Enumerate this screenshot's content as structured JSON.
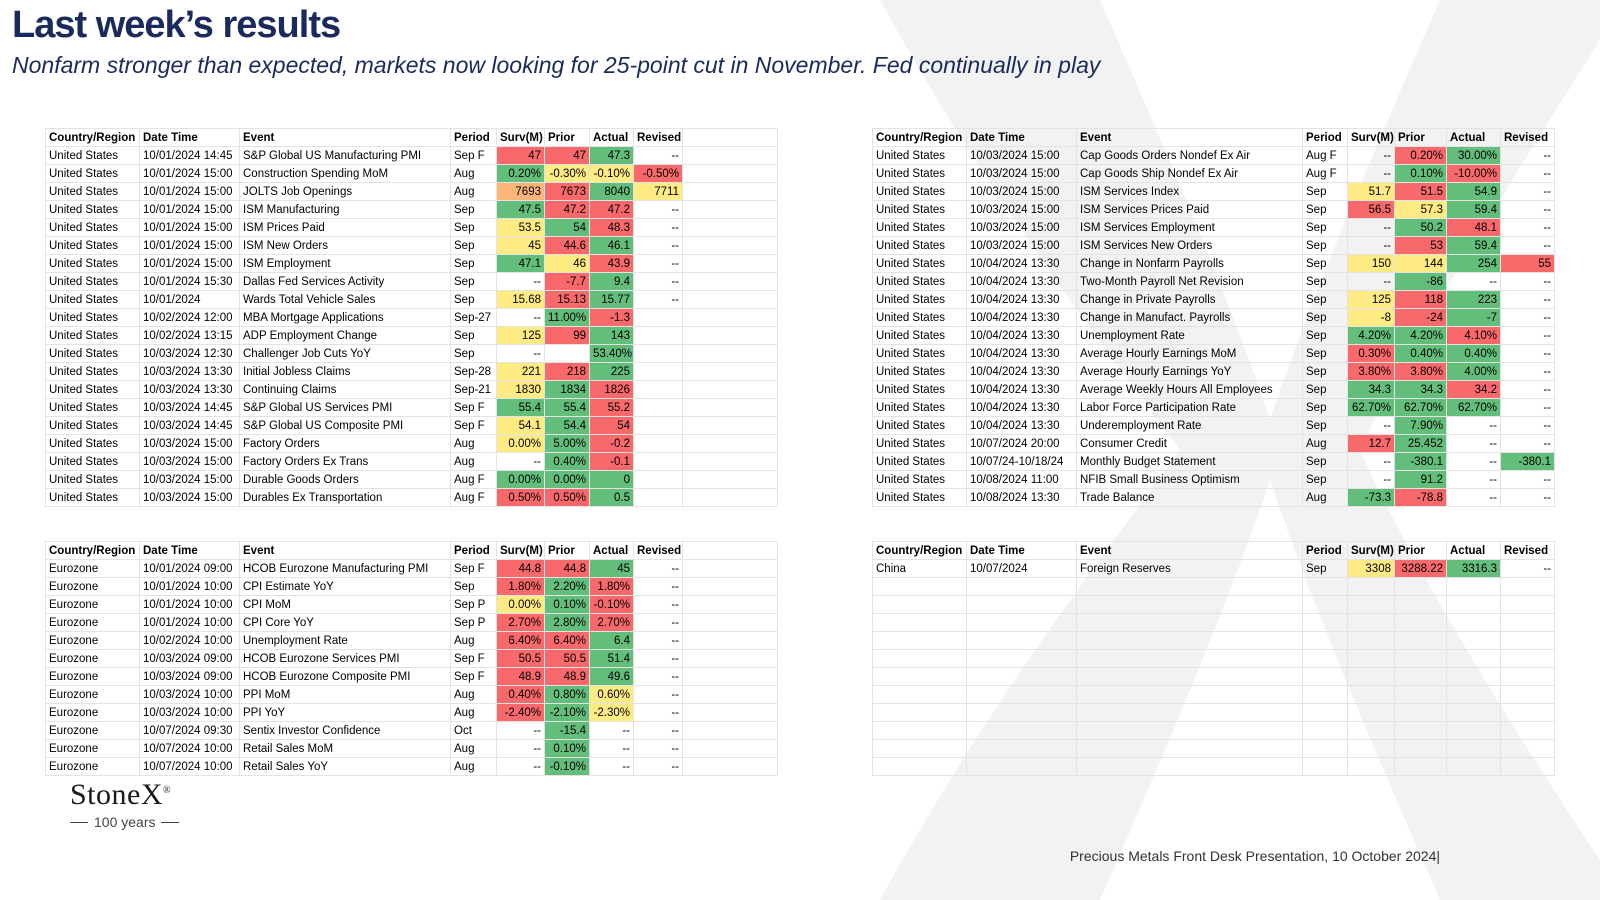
{
  "title": "Last week’s results",
  "subtitle": "Nonfarm stronger than expected, markets now looking for 25-point cut in November.  Fed continually in play",
  "headers": [
    "Country/Region",
    "Date Time",
    "Event",
    "Period",
    "Surv(M)",
    "Prior",
    "Actual",
    "Revised"
  ],
  "tables": {
    "us_left": [
      {
        "country": "United States",
        "datetime": "10/01/2024 14:45",
        "event": "S&P Global US Manufacturing PMI",
        "period": "Sep F",
        "surv": "47",
        "prior": "47",
        "actual": "47.3",
        "revised": "--",
        "c": [
          "r",
          "r",
          "g",
          ""
        ]
      },
      {
        "country": "United States",
        "datetime": "10/01/2024 15:00",
        "event": "Construction Spending MoM",
        "period": "Aug",
        "surv": "0.20%",
        "prior": "-0.30%",
        "actual": "-0.10%",
        "revised": "-0.50%",
        "c": [
          "g",
          "y",
          "y",
          "r"
        ]
      },
      {
        "country": "United States",
        "datetime": "10/01/2024 15:00",
        "event": "JOLTS Job Openings",
        "period": "Aug",
        "surv": "7693",
        "prior": "7673",
        "actual": "8040",
        "revised": "7711",
        "c": [
          "o",
          "r",
          "g",
          "y"
        ]
      },
      {
        "country": "United States",
        "datetime": "10/01/2024 15:00",
        "event": "ISM Manufacturing",
        "period": "Sep",
        "surv": "47.5",
        "prior": "47.2",
        "actual": "47.2",
        "revised": "--",
        "c": [
          "g",
          "r",
          "r",
          ""
        ]
      },
      {
        "country": "United States",
        "datetime": "10/01/2024 15:00",
        "event": "ISM Prices Paid",
        "period": "Sep",
        "surv": "53.5",
        "prior": "54",
        "actual": "48.3",
        "revised": "--",
        "c": [
          "y",
          "g",
          "r",
          ""
        ]
      },
      {
        "country": "United States",
        "datetime": "10/01/2024 15:00",
        "event": "ISM New Orders",
        "period": "Sep",
        "surv": "45",
        "prior": "44.6",
        "actual": "46.1",
        "revised": "--",
        "c": [
          "y",
          "r",
          "g",
          ""
        ]
      },
      {
        "country": "United States",
        "datetime": "10/01/2024 15:00",
        "event": "ISM Employment",
        "period": "Sep",
        "surv": "47.1",
        "prior": "46",
        "actual": "43.9",
        "revised": "--",
        "c": [
          "g",
          "y",
          "r",
          ""
        ]
      },
      {
        "country": "United States",
        "datetime": "10/01/2024 15:30",
        "event": "Dallas Fed Services Activity",
        "period": "Sep",
        "surv": "--",
        "prior": "-7.7",
        "actual": "9.4",
        "revised": "--",
        "c": [
          "",
          "r",
          "g",
          ""
        ]
      },
      {
        "country": "United States",
        "datetime": "10/01/2024",
        "event": "Wards Total Vehicle Sales",
        "period": "Sep",
        "surv": "15.68",
        "prior": "15.13",
        "actual": "15.77",
        "revised": "--",
        "c": [
          "y",
          "r",
          "g",
          ""
        ]
      },
      {
        "country": "United States",
        "datetime": "10/02/2024 12:00",
        "event": "MBA Mortgage Applications",
        "period": "Sep-27",
        "surv": "--",
        "prior": "11.00%",
        "actual": "-1.3",
        "revised": "",
        "c": [
          "",
          "g",
          "r",
          ""
        ]
      },
      {
        "country": "United States",
        "datetime": "10/02/2024 13:15",
        "event": "ADP Employment Change",
        "period": "Sep",
        "surv": "125",
        "prior": "99",
        "actual": "143",
        "revised": "",
        "c": [
          "y",
          "r",
          "g",
          ""
        ]
      },
      {
        "country": "United States",
        "datetime": "10/03/2024 12:30",
        "event": "Challenger Job Cuts YoY",
        "period": "Sep",
        "surv": "--",
        "prior": "",
        "actual": "53.40%",
        "revised": "",
        "c": [
          "",
          "",
          "g",
          ""
        ]
      },
      {
        "country": "United States",
        "datetime": "10/03/2024 13:30",
        "event": "Initial Jobless Claims",
        "period": "Sep-28",
        "surv": "221",
        "prior": "218",
        "actual": "225",
        "revised": "",
        "c": [
          "y",
          "r",
          "g",
          ""
        ]
      },
      {
        "country": "United States",
        "datetime": "10/03/2024 13:30",
        "event": "Continuing Claims",
        "period": "Sep-21",
        "surv": "1830",
        "prior": "1834",
        "actual": "1826",
        "revised": "",
        "c": [
          "y",
          "g",
          "r",
          ""
        ]
      },
      {
        "country": "United States",
        "datetime": "10/03/2024 14:45",
        "event": "S&P Global US Services PMI",
        "period": "Sep F",
        "surv": "55.4",
        "prior": "55.4",
        "actual": "55.2",
        "revised": "",
        "c": [
          "g",
          "g",
          "r",
          ""
        ]
      },
      {
        "country": "United States",
        "datetime": "10/03/2024 14:45",
        "event": "S&P Global US Composite PMI",
        "period": "Sep F",
        "surv": "54.1",
        "prior": "54.4",
        "actual": "54",
        "revised": "",
        "c": [
          "y",
          "g",
          "r",
          ""
        ]
      },
      {
        "country": "United States",
        "datetime": "10/03/2024 15:00",
        "event": "Factory Orders",
        "period": "Aug",
        "surv": "0.00%",
        "prior": "5.00%",
        "actual": "-0.2",
        "revised": "",
        "c": [
          "y",
          "g",
          "r",
          ""
        ]
      },
      {
        "country": "United States",
        "datetime": "10/03/2024 15:00",
        "event": "Factory Orders Ex Trans",
        "period": "Aug",
        "surv": "--",
        "prior": "0.40%",
        "actual": "-0.1",
        "revised": "",
        "c": [
          "",
          "g",
          "r",
          ""
        ]
      },
      {
        "country": "United States",
        "datetime": "10/03/2024 15:00",
        "event": "Durable Goods Orders",
        "period": "Aug F",
        "surv": "0.00%",
        "prior": "0.00%",
        "actual": "0",
        "revised": "",
        "c": [
          "g",
          "g",
          "g",
          ""
        ]
      },
      {
        "country": "United States",
        "datetime": "10/03/2024 15:00",
        "event": "Durables Ex Transportation",
        "period": "Aug F",
        "surv": "0.50%",
        "prior": "0.50%",
        "actual": "0.5",
        "revised": "",
        "c": [
          "r",
          "r",
          "g",
          ""
        ]
      }
    ],
    "us_right": [
      {
        "country": "United States",
        "datetime": "10/03/2024 15:00",
        "event": "Cap Goods Orders Nondef Ex Air",
        "period": "Aug F",
        "surv": "--",
        "prior": "0.20%",
        "actual": "30.00%",
        "revised": "--",
        "c": [
          "",
          "r",
          "g",
          ""
        ]
      },
      {
        "country": "United States",
        "datetime": "10/03/2024 15:00",
        "event": "Cap Goods Ship Nondef Ex Air",
        "period": "Aug F",
        "surv": "--",
        "prior": "0.10%",
        "actual": "-10.00%",
        "revised": "--",
        "c": [
          "",
          "g",
          "r",
          ""
        ]
      },
      {
        "country": "United States",
        "datetime": "10/03/2024 15:00",
        "event": "ISM Services Index",
        "period": "Sep",
        "surv": "51.7",
        "prior": "51.5",
        "actual": "54.9",
        "revised": "--",
        "c": [
          "y",
          "r",
          "g",
          ""
        ]
      },
      {
        "country": "United States",
        "datetime": "10/03/2024 15:00",
        "event": "ISM Services Prices Paid",
        "period": "Sep",
        "surv": "56.5",
        "prior": "57.3",
        "actual": "59.4",
        "revised": "--",
        "c": [
          "r",
          "y",
          "g",
          ""
        ]
      },
      {
        "country": "United States",
        "datetime": "10/03/2024 15:00",
        "event": "ISM Services Employment",
        "period": "Sep",
        "surv": "--",
        "prior": "50.2",
        "actual": "48.1",
        "revised": "--",
        "c": [
          "",
          "g",
          "r",
          ""
        ]
      },
      {
        "country": "United States",
        "datetime": "10/03/2024 15:00",
        "event": "ISM Services New Orders",
        "period": "Sep",
        "surv": "--",
        "prior": "53",
        "actual": "59.4",
        "revised": "--",
        "c": [
          "",
          "r",
          "g",
          ""
        ]
      },
      {
        "country": "United States",
        "datetime": "10/04/2024 13:30",
        "event": "Change in Nonfarm Payrolls",
        "period": "Sep",
        "surv": "150",
        "prior": "144",
        "actual": "254",
        "revised": "55",
        "c": [
          "y",
          "y",
          "g",
          "r"
        ]
      },
      {
        "country": "United States",
        "datetime": "10/04/2024 13:30",
        "event": "Two-Month Payroll Net Revision",
        "period": "Sep",
        "surv": "--",
        "prior": "-86",
        "actual": "--",
        "revised": "--",
        "c": [
          "",
          "g",
          "",
          ""
        ]
      },
      {
        "country": "United States",
        "datetime": "10/04/2024 13:30",
        "event": "Change in Private Payrolls",
        "period": "Sep",
        "surv": "125",
        "prior": "118",
        "actual": "223",
        "revised": "--",
        "c": [
          "y",
          "r",
          "g",
          ""
        ]
      },
      {
        "country": "United States",
        "datetime": "10/04/2024 13:30",
        "event": "Change in Manufact. Payrolls",
        "period": "Sep",
        "surv": "-8",
        "prior": "-24",
        "actual": "-7",
        "revised": "--",
        "c": [
          "y",
          "r",
          "g",
          ""
        ]
      },
      {
        "country": "United States",
        "datetime": "10/04/2024 13:30",
        "event": "Unemployment Rate",
        "period": "Sep",
        "surv": "4.20%",
        "prior": "4.20%",
        "actual": "4.10%",
        "revised": "--",
        "c": [
          "g",
          "g",
          "r",
          ""
        ]
      },
      {
        "country": "United States",
        "datetime": "10/04/2024 13:30",
        "event": "Average Hourly Earnings MoM",
        "period": "Sep",
        "surv": "0.30%",
        "prior": "0.40%",
        "actual": "0.40%",
        "revised": "--",
        "c": [
          "r",
          "g",
          "g",
          ""
        ]
      },
      {
        "country": "United States",
        "datetime": "10/04/2024 13:30",
        "event": "Average Hourly Earnings YoY",
        "period": "Sep",
        "surv": "3.80%",
        "prior": "3.80%",
        "actual": "4.00%",
        "revised": "--",
        "c": [
          "r",
          "r",
          "g",
          ""
        ]
      },
      {
        "country": "United States",
        "datetime": "10/04/2024 13:30",
        "event": "Average Weekly Hours All Employees",
        "period": "Sep",
        "surv": "34.3",
        "prior": "34.3",
        "actual": "34.2",
        "revised": "--",
        "c": [
          "g",
          "g",
          "r",
          ""
        ]
      },
      {
        "country": "United States",
        "datetime": "10/04/2024 13:30",
        "event": "Labor Force Participation Rate",
        "period": "Sep",
        "surv": "62.70%",
        "prior": "62.70%",
        "actual": "62.70%",
        "revised": "--",
        "c": [
          "g",
          "g",
          "g",
          ""
        ]
      },
      {
        "country": "United States",
        "datetime": "10/04/2024 13:30",
        "event": "Underemployment Rate",
        "period": "Sep",
        "surv": "--",
        "prior": "7.90%",
        "actual": "--",
        "revised": "--",
        "c": [
          "",
          "g",
          "",
          ""
        ]
      },
      {
        "country": "United States",
        "datetime": "10/07/2024 20:00",
        "event": "Consumer Credit",
        "period": "Aug",
        "surv": "12.7",
        "prior": "25.452",
        "actual": "--",
        "revised": "--",
        "c": [
          "r",
          "g",
          "",
          ""
        ]
      },
      {
        "country": "United States",
        "datetime": "10/07/24-10/18/24",
        "event": "Monthly Budget Statement",
        "period": "Sep",
        "surv": "--",
        "prior": "-380.1",
        "actual": "--",
        "revised": "-380.1",
        "c": [
          "",
          "g",
          "",
          "g"
        ]
      },
      {
        "country": "United States",
        "datetime": "10/08/2024 11:00",
        "event": "NFIB Small Business Optimism",
        "period": "Sep",
        "surv": "--",
        "prior": "91.2",
        "actual": "--",
        "revised": "--",
        "c": [
          "",
          "g",
          "",
          ""
        ]
      },
      {
        "country": "United States",
        "datetime": "10/08/2024 13:30",
        "event": "Trade Balance",
        "period": "Aug",
        "surv": "-73.3",
        "prior": "-78.8",
        "actual": "--",
        "revised": "--",
        "c": [
          "g",
          "r",
          "",
          ""
        ]
      }
    ],
    "eurozone": [
      {
        "country": "Eurozone",
        "datetime": "10/01/2024 09:00",
        "event": "HCOB Eurozone Manufacturing PMI",
        "period": "Sep F",
        "surv": "44.8",
        "prior": "44.8",
        "actual": "45",
        "revised": "--",
        "c": [
          "r",
          "r",
          "g",
          ""
        ]
      },
      {
        "country": "Eurozone",
        "datetime": "10/01/2024 10:00",
        "event": "CPI Estimate YoY",
        "period": "Sep",
        "surv": "1.80%",
        "prior": "2.20%",
        "actual": "1.80%",
        "revised": "--",
        "c": [
          "r",
          "g",
          "r",
          ""
        ]
      },
      {
        "country": "Eurozone",
        "datetime": "10/01/2024 10:00",
        "event": "CPI MoM",
        "period": "Sep P",
        "surv": "0.00%",
        "prior": "0.10%",
        "actual": "-0.10%",
        "revised": "--",
        "c": [
          "y",
          "g",
          "r",
          ""
        ]
      },
      {
        "country": "Eurozone",
        "datetime": "10/01/2024 10:00",
        "event": "CPI Core YoY",
        "period": "Sep P",
        "surv": "2.70%",
        "prior": "2.80%",
        "actual": "2.70%",
        "revised": "--",
        "c": [
          "r",
          "g",
          "r",
          ""
        ]
      },
      {
        "country": "Eurozone",
        "datetime": "10/02/2024 10:00",
        "event": "Unemployment Rate",
        "period": "Aug",
        "surv": "6.40%",
        "prior": "6.40%",
        "actual": "6.4",
        "revised": "--",
        "c": [
          "r",
          "r",
          "g",
          ""
        ]
      },
      {
        "country": "Eurozone",
        "datetime": "10/03/2024 09:00",
        "event": "HCOB Eurozone Services PMI",
        "period": "Sep F",
        "surv": "50.5",
        "prior": "50.5",
        "actual": "51.4",
        "revised": "--",
        "c": [
          "r",
          "r",
          "g",
          ""
        ]
      },
      {
        "country": "Eurozone",
        "datetime": "10/03/2024 09:00",
        "event": "HCOB Eurozone Composite PMI",
        "period": "Sep F",
        "surv": "48.9",
        "prior": "48.9",
        "actual": "49.6",
        "revised": "--",
        "c": [
          "r",
          "r",
          "g",
          ""
        ]
      },
      {
        "country": "Eurozone",
        "datetime": "10/03/2024 10:00",
        "event": "PPI MoM",
        "period": "Aug",
        "surv": "0.40%",
        "prior": "0.80%",
        "actual": "0.60%",
        "revised": "--",
        "c": [
          "r",
          "g",
          "y",
          ""
        ]
      },
      {
        "country": "Eurozone",
        "datetime": "10/03/2024 10:00",
        "event": "PPI YoY",
        "period": "Aug",
        "surv": "-2.40%",
        "prior": "-2.10%",
        "actual": "-2.30%",
        "revised": "--",
        "c": [
          "r",
          "g",
          "y",
          ""
        ]
      },
      {
        "country": "Eurozone",
        "datetime": "10/07/2024 09:30",
        "event": "Sentix Investor Confidence",
        "period": "Oct",
        "surv": "--",
        "prior": "-15.4",
        "actual": "--",
        "revised": "--",
        "c": [
          "",
          "g",
          "",
          ""
        ]
      },
      {
        "country": "Eurozone",
        "datetime": "10/07/2024 10:00",
        "event": "Retail Sales MoM",
        "period": "Aug",
        "surv": "--",
        "prior": "0.10%",
        "actual": "--",
        "revised": "--",
        "c": [
          "",
          "g",
          "",
          ""
        ]
      },
      {
        "country": "Eurozone",
        "datetime": "10/07/2024 10:00",
        "event": "Retail Sales YoY",
        "period": "Aug",
        "surv": "--",
        "prior": "-0.10%",
        "actual": "--",
        "revised": "--",
        "c": [
          "",
          "g",
          "",
          ""
        ]
      }
    ],
    "china": [
      {
        "country": "China",
        "datetime": "10/07/2024",
        "event": "Foreign Reserves",
        "period": "Sep",
        "surv": "3308",
        "prior": "3288.22",
        "actual": "3316.3",
        "revised": "--",
        "c": [
          "y",
          "r",
          "g",
          ""
        ]
      }
    ]
  },
  "logo": {
    "name": "StoneX",
    "years": "100 years"
  },
  "footer": "Precious Metals Front Desk Presentation, 10 October 2024|"
}
